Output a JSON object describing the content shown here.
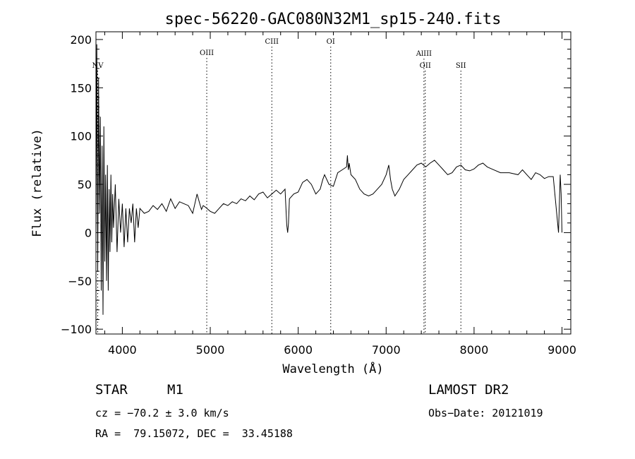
{
  "chart_data": {
    "type": "line",
    "title": "spec-56220-GAC080N32M1_sp15-240.fits",
    "xlabel": "Wavelength (Å)",
    "ylabel": "Flux (relative)",
    "xlim": [
      3700,
      9100
    ],
    "ylim": [
      -105,
      208
    ],
    "xticks": [
      4000,
      5000,
      6000,
      7000,
      8000,
      9000
    ],
    "yticks": [
      -100,
      -50,
      0,
      50,
      100,
      150,
      200
    ],
    "tick_labels_x": [
      "4000",
      "5000",
      "6000",
      "7000",
      "8000",
      "9000"
    ],
    "tick_labels_y": [
      "−100",
      "−50",
      "0",
      "50",
      "100",
      "150",
      "200"
    ],
    "grid": false,
    "lines": [
      {
        "label": "NV",
        "wavelength": 3720
      },
      {
        "label": "OIII",
        "wavelength": 4960
      },
      {
        "label": "CIII",
        "wavelength": 5700
      },
      {
        "label": "OI",
        "wavelength": 6370
      },
      {
        "label": "AlIII",
        "wavelength": 7430
      },
      {
        "label": "OII",
        "wavelength": 7445
      },
      {
        "label": "SII",
        "wavelength": 7850
      }
    ],
    "series": [
      {
        "x": [
          3700,
          3710,
          3720,
          3730,
          3740,
          3750,
          3760,
          3770,
          3780,
          3790,
          3800,
          3810,
          3820,
          3830,
          3840,
          3850,
          3860,
          3870,
          3880,
          3890,
          3900,
          3920,
          3940,
          3960,
          3980,
          4000,
          4020,
          4040,
          4060,
          4080,
          4100,
          4120,
          4140,
          4160,
          4180,
          4200,
          4250,
          4300,
          4350,
          4400,
          4450,
          4500,
          4550,
          4600,
          4650,
          4700,
          4750,
          4800,
          4850,
          4880,
          4900,
          4920,
          4950,
          5000,
          5050,
          5100,
          5150,
          5200,
          5250,
          5300,
          5350,
          5400,
          5450,
          5500,
          5550,
          5600,
          5650,
          5700,
          5750,
          5800,
          5850,
          5870,
          5880,
          5890,
          5900,
          5950,
          6000,
          6050,
          6100,
          6150,
          6200,
          6250,
          6280,
          6300,
          6350,
          6400,
          6450,
          6500,
          6550,
          6560,
          6570,
          6580,
          6600,
          6650,
          6700,
          6750,
          6800,
          6850,
          6900,
          6950,
          7000,
          7030,
          7050,
          7070,
          7100,
          7150,
          7200,
          7250,
          7300,
          7350,
          7400,
          7450,
          7500,
          7550,
          7600,
          7650,
          7700,
          7750,
          7800,
          7850,
          7900,
          7950,
          8000,
          8050,
          8100,
          8150,
          8200,
          8300,
          8400,
          8500,
          8550,
          8600,
          8650,
          8700,
          8750,
          8800,
          8850,
          8900,
          8960,
          8980,
          8990,
          9000
        ],
        "y": [
          0,
          195,
          -40,
          160,
          20,
          120,
          -60,
          90,
          -85,
          110,
          -30,
          60,
          -50,
          70,
          -60,
          45,
          -20,
          60,
          -10,
          40,
          5,
          50,
          -20,
          35,
          0,
          30,
          -15,
          25,
          -10,
          25,
          10,
          30,
          -10,
          25,
          5,
          25,
          20,
          22,
          28,
          24,
          30,
          22,
          35,
          25,
          32,
          30,
          28,
          20,
          40,
          30,
          24,
          28,
          26,
          22,
          20,
          25,
          30,
          28,
          32,
          30,
          35,
          33,
          38,
          34,
          40,
          42,
          36,
          40,
          44,
          40,
          45,
          8,
          0,
          10,
          35,
          40,
          42,
          52,
          55,
          50,
          40,
          45,
          55,
          60,
          50,
          48,
          62,
          65,
          68,
          80,
          65,
          72,
          60,
          55,
          45,
          40,
          38,
          40,
          45,
          50,
          60,
          70,
          55,
          45,
          38,
          45,
          55,
          60,
          65,
          70,
          72,
          68,
          72,
          75,
          70,
          65,
          60,
          62,
          68,
          70,
          65,
          64,
          66,
          70,
          72,
          68,
          66,
          62,
          62,
          60,
          65,
          60,
          55,
          62,
          60,
          56,
          58,
          58,
          0,
          60,
          40,
          0
        ]
      }
    ]
  },
  "footer": {
    "object_type": "STAR",
    "subclass": "M1",
    "survey": "LAMOST DR2",
    "cz": "cz = −70.2 ± 3.0 km/s",
    "obs_date": "Obs−Date: 20121019",
    "radec": "RA =  79.15072, DEC =  33.45188"
  }
}
